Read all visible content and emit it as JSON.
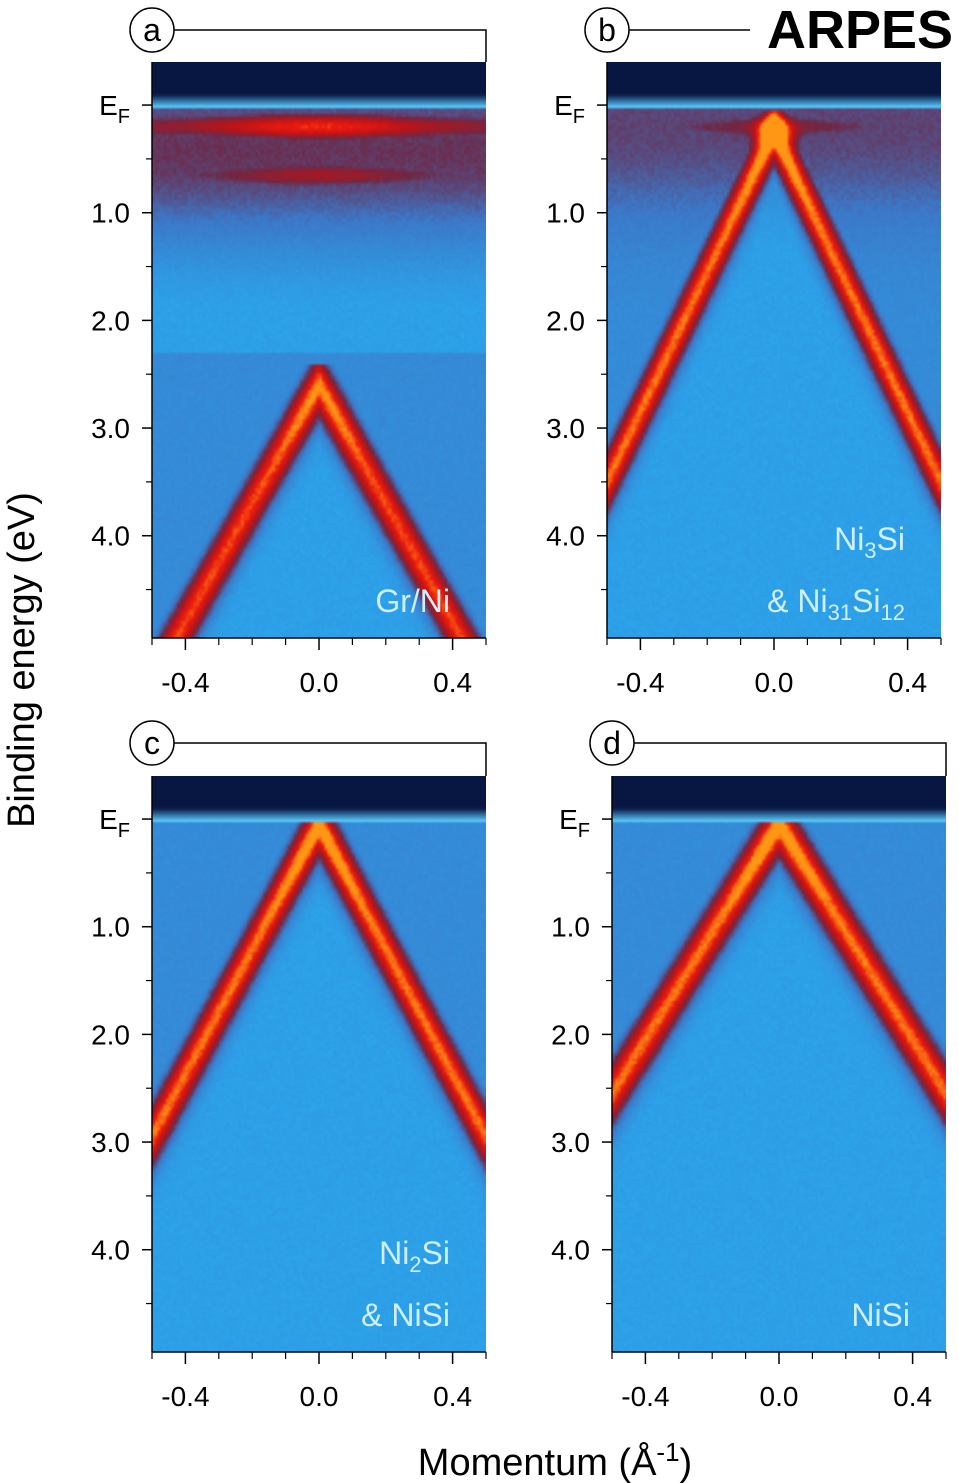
{
  "figure": {
    "title": "ARPES",
    "xlabel": "Momentum (Å⁻¹)",
    "ylabel": "Binding energy (eV)"
  },
  "colors": {
    "low": "#2aa8ee",
    "mid": "#8a1a2a",
    "high": "#e11010",
    "peak": "#ff7a00",
    "dark_top": "#0a1a44",
    "fermi_line": "#5fd0ff",
    "label": "#cfefff"
  },
  "chart_data": [
    {
      "type": "heatmap",
      "panel": "a",
      "sample_label_lines": [
        [
          {
            "t": "Gr/Ni"
          }
        ]
      ],
      "xlim": [
        -0.5,
        0.5
      ],
      "ylim_binding_energy_eV": [
        4.95,
        -0.4
      ],
      "x_ticks": [
        "-0.4",
        "0.0",
        "0.4"
      ],
      "y_ticks": [
        "E_F",
        "1.0",
        "2.0",
        "3.0",
        "4.0"
      ],
      "bands": [
        {
          "kind": "flat",
          "energy": 0.2,
          "intensity": 1.0
        },
        {
          "kind": "flat",
          "energy": 0.65,
          "intensity": 0.7
        },
        {
          "kind": "cone",
          "apex_energy": 2.6,
          "slope_eV_per_invA": 5.5,
          "intensity": 0.95
        }
      ]
    },
    {
      "type": "heatmap",
      "panel": "b",
      "sample_label_lines": [
        [
          {
            "t": "Ni"
          },
          {
            "t": "3",
            "sub": true
          },
          {
            "t": "Si"
          }
        ],
        [
          {
            "t": "& Ni"
          },
          {
            "t": "31",
            "sub": true
          },
          {
            "t": "Si"
          },
          {
            "t": "12",
            "sub": true
          }
        ]
      ],
      "xlim": [
        -0.5,
        0.5
      ],
      "ylim_binding_energy_eV": [
        4.95,
        -0.4
      ],
      "x_ticks": [
        "-0.4",
        "0.0",
        "0.4"
      ],
      "y_ticks": [
        "E_F",
        "1.0",
        "2.0",
        "3.0",
        "4.0"
      ],
      "bands": [
        {
          "kind": "flat",
          "energy": 0.2,
          "intensity": 0.6
        },
        {
          "kind": "cone",
          "apex_energy": 0.25,
          "slope_eV_per_invA": 6.5,
          "intensity": 1.0
        }
      ]
    },
    {
      "type": "heatmap",
      "panel": "c",
      "sample_label_lines": [
        [
          {
            "t": "Ni"
          },
          {
            "t": "2",
            "sub": true
          },
          {
            "t": "Si"
          }
        ],
        [
          {
            "t": "& NiSi"
          }
        ]
      ],
      "xlim": [
        -0.5,
        0.5
      ],
      "ylim_binding_energy_eV": [
        4.95,
        -0.4
      ],
      "x_ticks": [
        "-0.4",
        "0.0",
        "0.4"
      ],
      "y_ticks": [
        "E_F",
        "1.0",
        "2.0",
        "3.0",
        "4.0"
      ],
      "bands": [
        {
          "kind": "cone",
          "apex_energy": 0.05,
          "slope_eV_per_invA": 5.8,
          "intensity": 1.0
        }
      ]
    },
    {
      "type": "heatmap",
      "panel": "d",
      "sample_label_lines": [
        [
          {
            "t": "NiSi"
          }
        ]
      ],
      "xlim": [
        -0.5,
        0.5
      ],
      "ylim_binding_energy_eV": [
        4.95,
        -0.4
      ],
      "x_ticks": [
        "-0.4",
        "0.0",
        "0.4"
      ],
      "y_ticks": [
        "E_F",
        "1.0",
        "2.0",
        "3.0",
        "4.0"
      ],
      "bands": [
        {
          "kind": "cone",
          "apex_energy": 0.05,
          "slope_eV_per_invA": 5.0,
          "intensity": 1.0
        }
      ]
    }
  ]
}
